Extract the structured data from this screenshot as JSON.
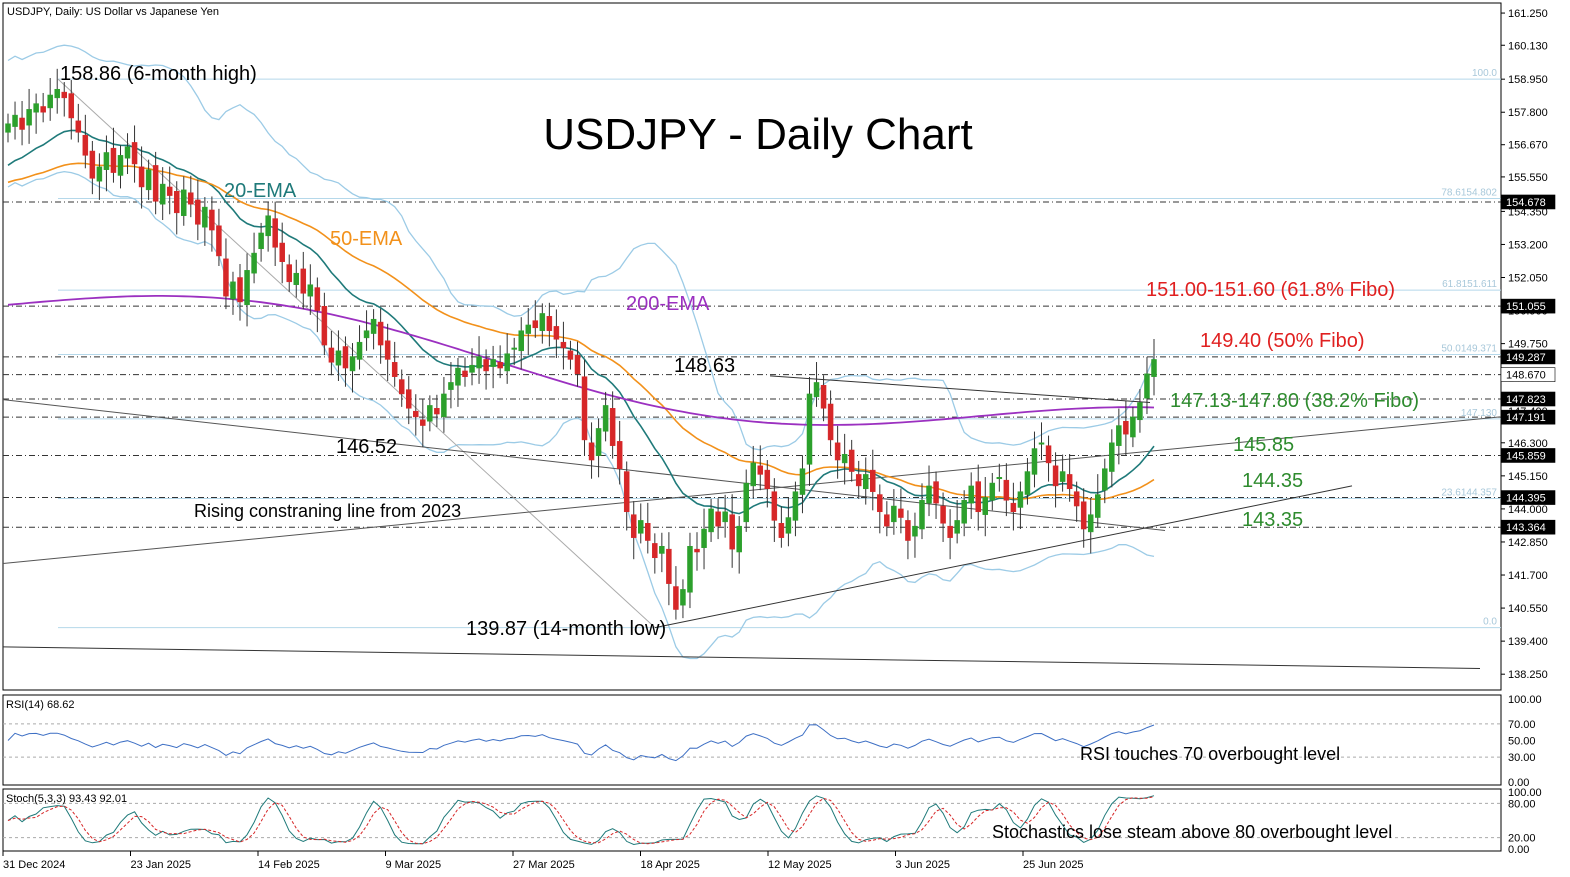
{
  "header": {
    "symbol_line": "USDJPY, Daily:  US Dollar vs Japanese Yen"
  },
  "chart_data": {
    "type": "candlestick",
    "title": "USDJPY - Daily Chart",
    "price_axis": {
      "ticks": [
        "161.250",
        "160.130",
        "158.950",
        "157.800",
        "156.670",
        "155.550",
        "154.350",
        "153.200",
        "152.050",
        "150.900",
        "149.750",
        "148.550",
        "147.400",
        "146.300",
        "145.150",
        "144.000",
        "142.850",
        "141.700",
        "140.550",
        "139.400",
        "138.250"
      ],
      "range": [
        137.7,
        161.6
      ]
    },
    "date_axis": {
      "labels": [
        "31 Dec 2024",
        "23 Jan 2025",
        "14 Feb 2025",
        "9 Mar 2025",
        "27 Mar 2025",
        "18 Apr 2025",
        "12 May 2025",
        "3 Jun 2025",
        "25 Jun 2025"
      ]
    },
    "price_tags": [
      {
        "label": "154.678",
        "value": 154.678,
        "dark": true
      },
      {
        "label": "151.055",
        "value": 151.055,
        "dark": true
      },
      {
        "label": "149.287",
        "value": 149.287,
        "dark": true
      },
      {
        "label": "148.670",
        "value": 148.67,
        "dark": false
      },
      {
        "label": "147.823",
        "value": 147.823,
        "dark": true
      },
      {
        "label": "147.191",
        "value": 147.191,
        "dark": true
      },
      {
        "label": "145.859",
        "value": 145.859,
        "dark": true
      },
      {
        "label": "144.395",
        "value": 144.395,
        "dark": true
      },
      {
        "label": "143.364",
        "value": 143.364,
        "dark": true
      }
    ],
    "fibo_labels": [
      {
        "label": "100.0",
        "value": 158.95
      },
      {
        "label": "78.6154.802",
        "value": 154.8
      },
      {
        "label": "61.8151.611",
        "value": 151.61
      },
      {
        "label": "50.0149.371",
        "value": 149.37
      },
      {
        "label": "147.130",
        "value": 147.13
      },
      {
        "label": "23.6144.357",
        "value": 144.36
      },
      {
        "label": "0.0",
        "value": 139.87
      }
    ],
    "annotations": {
      "high": "158.86 (6-month high)",
      "low": "139.87 (14-month low)",
      "p14863": "148.63",
      "p14652": "146.52",
      "rising_line": "Rising constraning line from 2023",
      "ema20": "20-EMA",
      "ema50": "50-EMA",
      "ema200": "200-EMA",
      "fib618": "151.00-151.60 (61.8% Fibo)",
      "fib50": "149.40 (50% Fibo)",
      "fib382": "147.13-147.80 (38.2% Fibo)",
      "l14585": "145.85",
      "l14435": "144.35",
      "l14335": "143.35"
    },
    "closes": [
      157.4,
      157.7,
      157.2,
      157.9,
      158.1,
      157.8,
      158.4,
      158.6,
      158.3,
      157.6,
      157.1,
      156.3,
      155.5,
      155.9,
      156.4,
      155.7,
      156.3,
      156.6,
      156.0,
      155.2,
      155.8,
      154.7,
      155.3,
      154.9,
      154.3,
      155.1,
      154.6,
      153.9,
      154.5,
      153.7,
      152.8,
      151.4,
      151.9,
      151.2,
      152.3,
      152.9,
      153.6,
      154.2,
      153.1,
      152.6,
      151.9,
      152.2,
      151.5,
      151.8,
      150.9,
      149.7,
      149.1,
      149.5,
      148.9,
      149.3,
      149.8,
      150.2,
      150.6,
      149.7,
      149.2,
      148.6,
      148.0,
      147.5,
      147.2,
      146.9,
      147.6,
      147.3,
      148.0,
      148.4,
      148.9,
      148.6,
      149.0,
      149.3,
      148.8,
      149.2,
      148.9,
      149.4,
      149.6,
      150.2,
      150.4,
      150.3,
      150.8,
      150.2,
      149.9,
      149.6,
      149.2,
      148.7,
      146.4,
      145.7,
      146.8,
      147.6,
      146.2,
      145.4,
      143.9,
      143.0,
      143.6,
      142.9,
      142.3,
      142.7,
      141.4,
      140.5,
      141.2,
      142.7,
      142.5,
      143.3,
      144.0,
      143.4,
      143.9,
      142.6,
      143.4,
      144.9,
      145.6,
      145.2,
      144.7,
      143.6,
      143.0,
      143.7,
      144.6,
      145.4,
      148.0,
      148.4,
      147.5,
      146.4,
      145.7,
      145.9,
      145.3,
      144.8,
      145.2,
      144.6,
      143.9,
      143.4,
      144.1,
      143.7,
      142.9,
      143.4,
      144.3,
      144.8,
      144.2,
      143.5,
      143.0,
      143.6,
      144.3,
      144.8,
      143.9,
      144.4,
      144.9,
      145.1,
      144.3,
      143.9,
      144.6,
      145.3,
      146.1,
      146.3,
      145.6,
      144.8,
      145.3,
      144.7,
      144.1,
      143.3,
      143.8,
      144.5,
      145.4,
      146.3,
      146.9,
      146.6,
      147.2,
      147.7,
      148.7,
      149.2
    ],
    "indicators": {
      "rsi": {
        "label": "RSI(14) 68.62",
        "value": 68.62,
        "levels": [
          70,
          30
        ],
        "ticks": [
          "100.00",
          "70.00",
          "50.00",
          "30.00",
          "0.00"
        ],
        "note": "RSI touches 70 overbought level"
      },
      "stoch": {
        "label": "Stoch(5,3,3) 93.43 92.01",
        "k": 93.43,
        "d": 92.01,
        "levels": [
          80,
          20
        ],
        "ticks": [
          "100.00",
          "80.00",
          "20.00",
          "0.00"
        ],
        "note": "Stochastics lose steam above 80 overbought level"
      }
    },
    "colors": {
      "up": "#2ca02c",
      "down": "#d62728",
      "ema20": "#1f7a7a",
      "ema50": "#f2911b",
      "ema200": "#9b30c0",
      "bollinger": "#9ccbe6",
      "rsi": "#3d6fc4",
      "stoch_k": "#1f7a7a",
      "stoch_d": "#d62728",
      "fib_text": "#e02020",
      "support_text": "#2e8b2e"
    }
  }
}
